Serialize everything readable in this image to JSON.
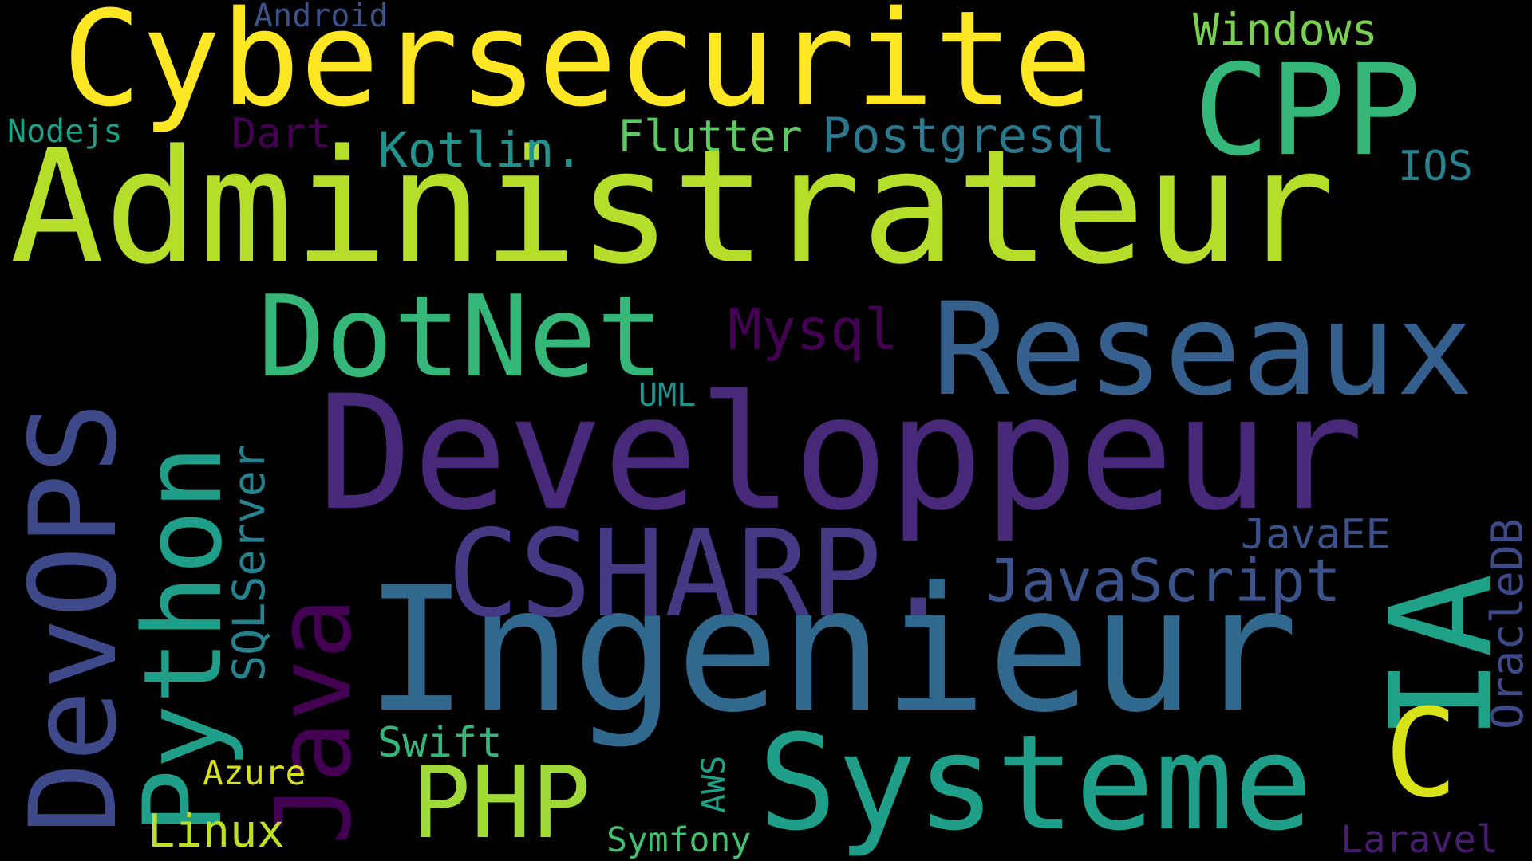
{
  "words": [
    {
      "text": "Administrateur",
      "color": "#b5de2b"
    },
    {
      "text": "Developpeur",
      "color": "#482878"
    },
    {
      "text": "Cybersecurite",
      "color": "#fde725"
    },
    {
      "text": "Ingenieur",
      "color": "#31688e"
    },
    {
      "text": "Reseaux",
      "color": "#35608d"
    },
    {
      "text": "CPP",
      "color": "#35b779"
    },
    {
      "text": "DevOPS",
      "color": "#3e4989"
    },
    {
      "text": "Python",
      "color": "#1f9e89"
    },
    {
      "text": "DotNet",
      "color": "#35b779"
    },
    {
      "text": "CSHARP.",
      "color": "#443983"
    },
    {
      "text": "Java",
      "color": "#440154"
    },
    {
      "text": "Systeme",
      "color": "#1f9e89"
    },
    {
      "text": "IA",
      "color": "#1fa187"
    },
    {
      "text": "C",
      "color": "#d8e219"
    },
    {
      "text": "PHP",
      "color": "#a0da39"
    },
    {
      "text": "JavaScript",
      "color": "#3b528b"
    },
    {
      "text": "Mysql",
      "color": "#440154"
    },
    {
      "text": "Kotlin.",
      "color": "#21918c"
    },
    {
      "text": "Flutter",
      "color": "#5ec962"
    },
    {
      "text": "Postgresql",
      "color": "#2a788e"
    },
    {
      "text": "Windows",
      "color": "#7ad151"
    },
    {
      "text": "Android",
      "color": "#3b528b"
    },
    {
      "text": "Nodejs",
      "color": "#1fa187"
    },
    {
      "text": "Dart",
      "color": "#440154"
    },
    {
      "text": "IOS",
      "color": "#26828e"
    },
    {
      "text": "JavaEE",
      "color": "#3b528b"
    },
    {
      "text": "OracleDB",
      "color": "#3e4989"
    },
    {
      "text": "SQLServer",
      "color": "#26828e"
    },
    {
      "text": "UML",
      "color": "#21918c"
    },
    {
      "text": "Swift",
      "color": "#35b779"
    },
    {
      "text": "Azure",
      "color": "#d8e219"
    },
    {
      "text": "Linux",
      "color": "#bddf26"
    },
    {
      "text": "AWS",
      "color": "#1fa187"
    },
    {
      "text": "Symfony",
      "color": "#44bf70"
    },
    {
      "text": "Laravel",
      "color": "#481d6f"
    }
  ]
}
